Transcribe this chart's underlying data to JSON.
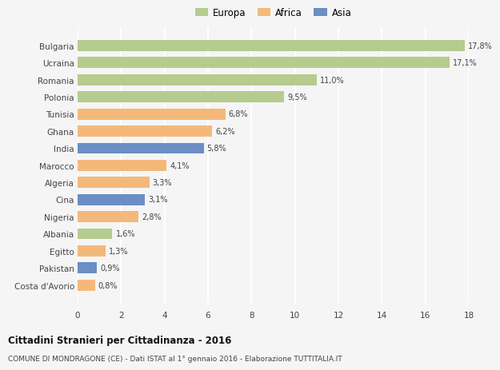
{
  "countries": [
    "Bulgaria",
    "Ucraina",
    "Romania",
    "Polonia",
    "Tunisia",
    "Ghana",
    "India",
    "Marocco",
    "Algeria",
    "Cina",
    "Nigeria",
    "Albania",
    "Egitto",
    "Pakistan",
    "Costa d'Avorio"
  ],
  "values": [
    17.8,
    17.1,
    11.0,
    9.5,
    6.8,
    6.2,
    5.8,
    4.1,
    3.3,
    3.1,
    2.8,
    1.6,
    1.3,
    0.9,
    0.8
  ],
  "labels": [
    "17,8%",
    "17,1%",
    "11,0%",
    "9,5%",
    "6,8%",
    "6,2%",
    "5,8%",
    "4,1%",
    "3,3%",
    "3,1%",
    "2,8%",
    "1,6%",
    "1,3%",
    "0,9%",
    "0,8%"
  ],
  "continents": [
    "Europa",
    "Europa",
    "Europa",
    "Europa",
    "Africa",
    "Africa",
    "Asia",
    "Africa",
    "Africa",
    "Asia",
    "Africa",
    "Europa",
    "Africa",
    "Asia",
    "Africa"
  ],
  "colors": {
    "Europa": "#b5cc8e",
    "Africa": "#f4b97a",
    "Asia": "#6b8ec4"
  },
  "title": "Cittadini Stranieri per Cittadinanza - 2016",
  "subtitle": "COMUNE DI MONDRAGONE (CE) - Dati ISTAT al 1° gennaio 2016 - Elaborazione TUTTITALIA.IT",
  "xlim": [
    0,
    18
  ],
  "xticks": [
    0,
    2,
    4,
    6,
    8,
    10,
    12,
    14,
    16,
    18
  ],
  "background_color": "#f5f5f5",
  "grid_color": "#ffffff",
  "bar_height": 0.65
}
